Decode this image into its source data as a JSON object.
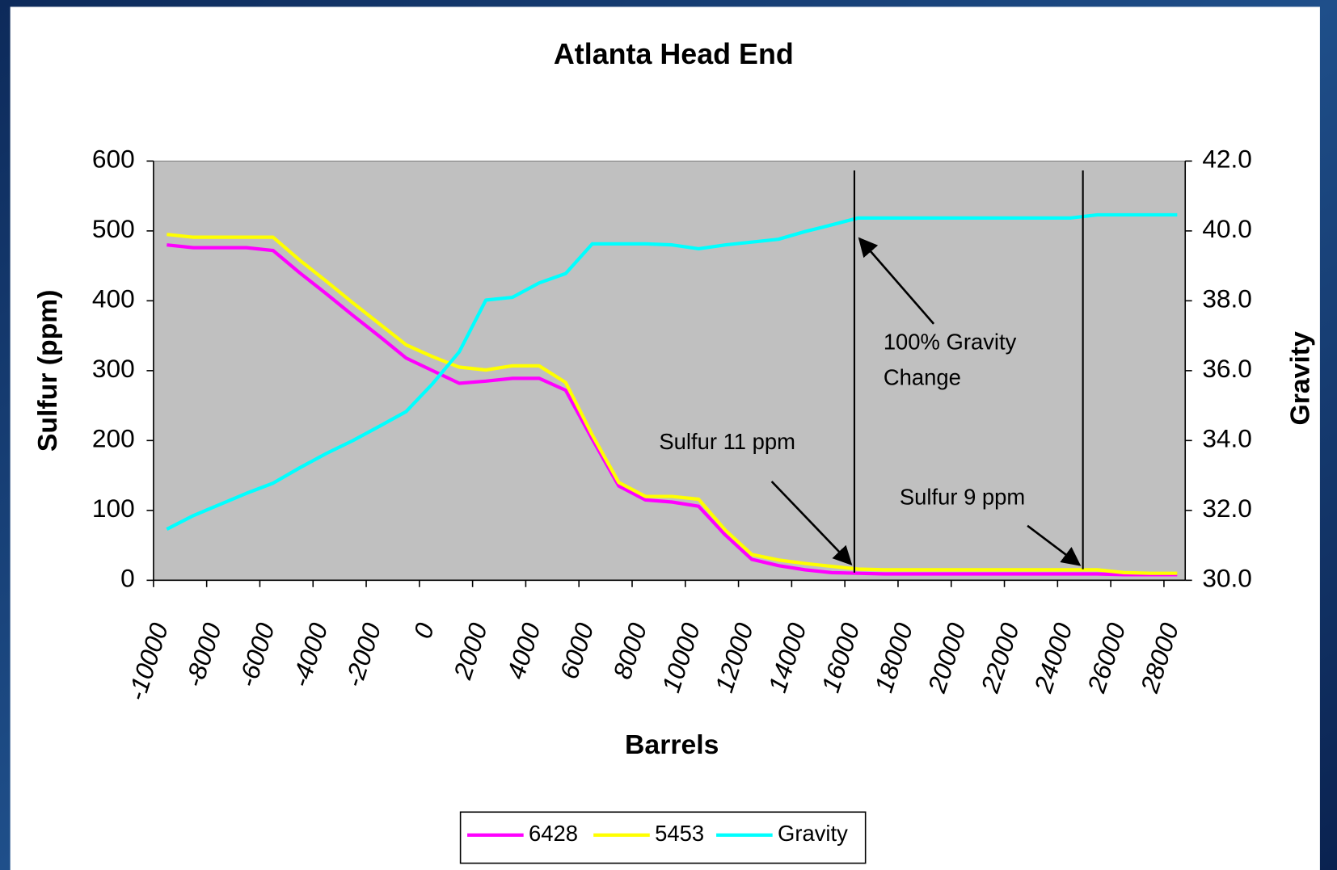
{
  "chart_data": {
    "type": "line",
    "title": "Atlanta Head End",
    "xlabel": "Barrels",
    "ylabel": "Sulfur (ppm)",
    "y2label": "Gravity",
    "x": [
      -9500,
      -8500,
      -7500,
      -6500,
      -5500,
      -4500,
      -3500,
      -2500,
      -1500,
      -500,
      500,
      1500,
      2500,
      3500,
      4500,
      5500,
      6500,
      7500,
      8500,
      9500,
      10500,
      11500,
      12500,
      13500,
      14500,
      15500,
      16500,
      17500,
      18500,
      19500,
      20500,
      21500,
      22500,
      23500,
      24500,
      25500,
      26500,
      27500,
      28500
    ],
    "series": [
      {
        "name": "6428",
        "color": "#ff00ff",
        "values": [
          480,
          476,
          476,
          476,
          472,
          440,
          410,
          379,
          349,
          318,
          300,
          282,
          285,
          289,
          289,
          272,
          202,
          135,
          115,
          112,
          106,
          65,
          30,
          21,
          15,
          11,
          10,
          9,
          9,
          9,
          9,
          9,
          9,
          9,
          9,
          9,
          8,
          8,
          8
        ]
      },
      {
        "name": "5453",
        "color": "#ffff00",
        "values": [
          495,
          491,
          491,
          491,
          491,
          458,
          428,
          397,
          367,
          337,
          320,
          305,
          301,
          307,
          307,
          283,
          208,
          140,
          120,
          120,
          116,
          72,
          37,
          29,
          24,
          20,
          16,
          15,
          15,
          15,
          15,
          15,
          15,
          15,
          15,
          15,
          11,
          10,
          10
        ]
      },
      {
        "name": "Gravity",
        "color": "#00ffff",
        "axis": "y2",
        "values": [
          31.46,
          31.85,
          32.17,
          32.49,
          32.78,
          33.22,
          33.63,
          34.0,
          34.41,
          34.83,
          35.63,
          36.54,
          38.02,
          38.1,
          38.51,
          38.78,
          39.63,
          39.63,
          39.63,
          39.6,
          39.49,
          39.6,
          39.68,
          39.76,
          39.98,
          40.17,
          40.37,
          40.37,
          40.37,
          40.37,
          40.37,
          40.37,
          40.37,
          40.37,
          40.37,
          40.46,
          40.46,
          40.46,
          40.46
        ]
      }
    ],
    "xlim": [
      -10000,
      28800
    ],
    "xticks": [
      -10000,
      -8000,
      -6000,
      -4000,
      -2000,
      0,
      2000,
      4000,
      6000,
      8000,
      10000,
      12000,
      14000,
      16000,
      18000,
      20000,
      22000,
      24000,
      26000,
      28000
    ],
    "ylim": [
      0,
      600
    ],
    "yticks": [
      0,
      100,
      200,
      300,
      400,
      500,
      600
    ],
    "y2lim": [
      30,
      42
    ],
    "y2ticks": [
      {
        "value": 30,
        "label": "30.0"
      },
      {
        "value": 32,
        "label": "32.0"
      },
      {
        "value": 34,
        "label": "34.0"
      },
      {
        "value": 36,
        "label": "36.0"
      },
      {
        "value": 38,
        "label": "38.0"
      },
      {
        "value": 40,
        "label": "40.0"
      },
      {
        "value": 42,
        "label": "42.0"
      }
    ],
    "plot_background": "#c0c0c0",
    "legend": "bottom",
    "annotations": [
      "100% Gravity",
      "Change",
      "Sulfur 11 ppm",
      "Sulfur 9 ppm"
    ]
  }
}
